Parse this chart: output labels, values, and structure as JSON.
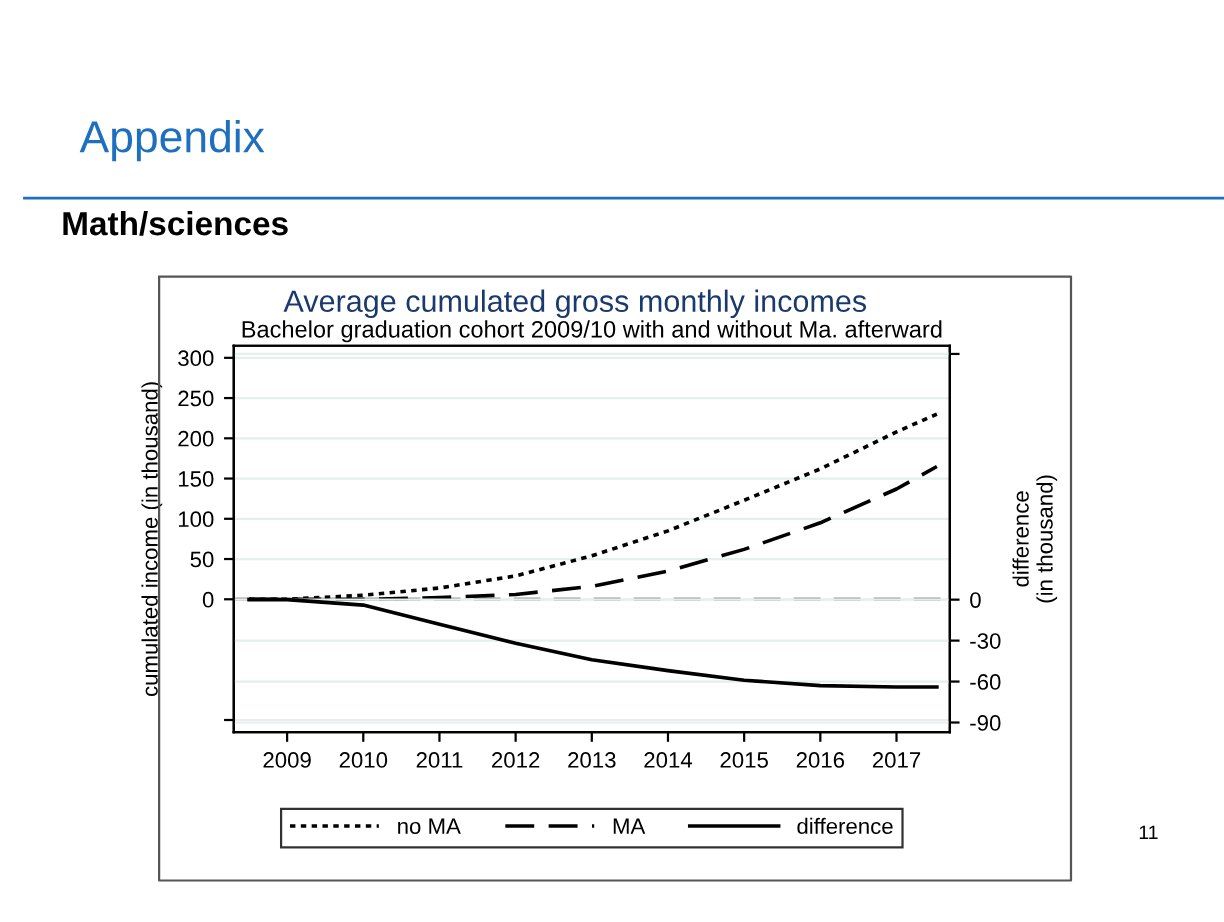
{
  "chart_data": {
    "type": "line",
    "title": "Average cumulated gross monthly incomes",
    "subtitle": "Bachelor graduation cohort 2009/10 with and without Ma. afterward",
    "ylabel": "cumulated income (in thousand)",
    "y2label": "difference\n(in thousand)",
    "annotations": [
      "Appendix",
      "Math/sciences",
      "11"
    ],
    "xlim": [
      2008.3,
      2017.7
    ],
    "xticks": [
      2009,
      2010,
      2011,
      2012,
      2013,
      2014,
      2015,
      2016,
      2017
    ],
    "ylim": [
      -165,
      315
    ],
    "yticks": [
      {
        "value": -150,
        "label": null
      },
      0,
      50,
      100,
      150,
      200,
      250,
      300
    ],
    "y2lim": [
      -97,
      186
    ],
    "y2ticks": [
      -90,
      -60,
      -30,
      0,
      {
        "value": 180,
        "label": null
      }
    ],
    "grid": "y",
    "legend": "bottom",
    "ref_lines": [
      {
        "axis": "y",
        "value": 0,
        "color": "#999999",
        "line_style": "dashed"
      }
    ],
    "series": [
      {
        "name": "no MA",
        "color": "#000000",
        "line_style": "dotted",
        "x": [
          2008.5,
          2009,
          2010,
          2011,
          2012,
          2013,
          2014,
          2015,
          2016,
          2017,
          2017.53
        ],
        "values": [
          0,
          0,
          5,
          14,
          29,
          54,
          85,
          123,
          162,
          208,
          230
        ]
      },
      {
        "name": "MA",
        "color": "#000000",
        "line_style": "dashed",
        "x": [
          2008.5,
          2009,
          2010,
          2011,
          2012,
          2013,
          2014,
          2015,
          2016,
          2017,
          2017.53
        ],
        "values": [
          0,
          0,
          0,
          2,
          6,
          16,
          35,
          62,
          95,
          137,
          165
        ]
      },
      {
        "name": "difference",
        "color": "#000000",
        "line_style": "solid",
        "axis": "y2",
        "x": [
          2008.5,
          2009,
          2010,
          2011,
          2012,
          2013,
          2014,
          2015,
          2016,
          2017,
          2017.53
        ],
        "values": [
          0,
          0,
          -4,
          -18,
          -32,
          -44,
          -52,
          -59,
          -63,
          -64,
          -64
        ]
      }
    ]
  }
}
